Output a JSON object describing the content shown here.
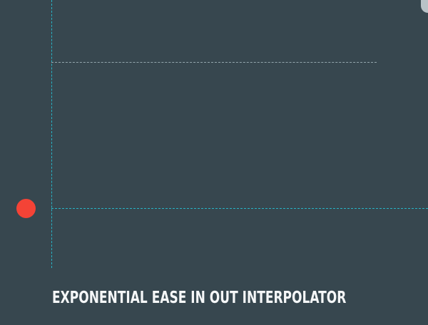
{
  "caption": {
    "title": "EXPONENTIAL EASE IN OUT INTERPOLATOR"
  },
  "animation": {
    "indicator": "red-dot",
    "progress": 0
  },
  "colors": {
    "background": "#37474f",
    "accent_line": "#26c6da",
    "guide_line": "#9fb1b8",
    "dot": "#f44336",
    "title": "#f5f7f8"
  }
}
